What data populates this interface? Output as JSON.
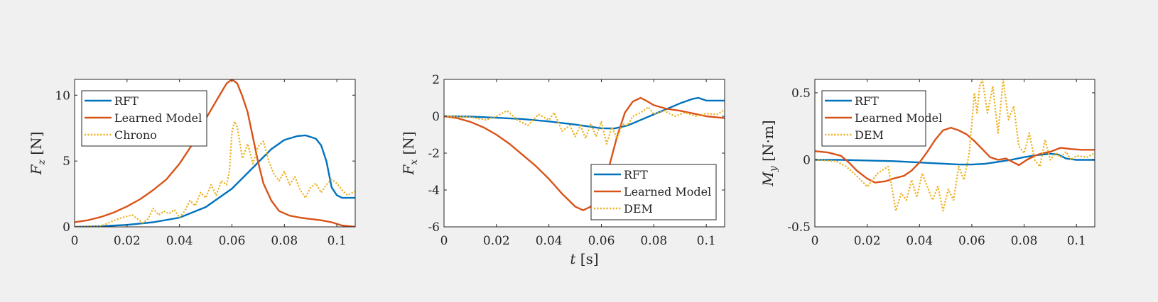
{
  "colors": {
    "rft": "#0072bd",
    "learned": "#d95319",
    "ref": "#edb120",
    "background": "#f0f0f0"
  },
  "chart_data": [
    {
      "type": "line",
      "xlabel": "",
      "ylabel": "F_z [N]",
      "xlim": [
        0,
        0.107
      ],
      "ylim": [
        0,
        11.2
      ],
      "xticks": [
        0,
        0.02,
        0.04,
        0.06,
        0.08,
        0.1
      ],
      "yticks": [
        0,
        5,
        10
      ],
      "xtick_labels": [
        "0",
        "0.02",
        "0.04",
        "0.06",
        "0.08",
        "0.1"
      ],
      "ytick_labels": [
        "0",
        "5",
        "10"
      ],
      "legend_position": "top-left",
      "series": [
        {
          "name": "RFT",
          "style": "solid",
          "x": [
            0,
            0.01,
            0.02,
            0.03,
            0.04,
            0.05,
            0.06,
            0.065,
            0.07,
            0.075,
            0.08,
            0.085,
            0.088,
            0.092,
            0.094,
            0.096,
            0.098,
            0.1,
            0.102,
            0.107
          ],
          "y": [
            0,
            0.05,
            0.15,
            0.35,
            0.7,
            1.5,
            2.9,
            3.9,
            4.9,
            5.9,
            6.6,
            6.9,
            6.95,
            6.7,
            6.2,
            5.0,
            3.0,
            2.4,
            2.2,
            2.2
          ]
        },
        {
          "name": "Learned Model",
          "style": "solid",
          "x": [
            0,
            0.005,
            0.01,
            0.015,
            0.02,
            0.025,
            0.03,
            0.035,
            0.04,
            0.045,
            0.05,
            0.055,
            0.058,
            0.06,
            0.062,
            0.064,
            0.066,
            0.068,
            0.07,
            0.072,
            0.075,
            0.078,
            0.082,
            0.086,
            0.09,
            0.094,
            0.098,
            0.102,
            0.107
          ],
          "y": [
            0.35,
            0.5,
            0.75,
            1.1,
            1.55,
            2.1,
            2.8,
            3.6,
            4.8,
            6.3,
            8.2,
            9.9,
            10.9,
            11.2,
            10.9,
            9.9,
            8.7,
            6.8,
            4.9,
            3.3,
            2.0,
            1.2,
            0.85,
            0.7,
            0.6,
            0.5,
            0.35,
            0.1,
            0
          ]
        },
        {
          "name": "Chrono",
          "style": "dotted",
          "x": [
            0,
            0.01,
            0.014,
            0.018,
            0.022,
            0.026,
            0.028,
            0.03,
            0.032,
            0.034,
            0.036,
            0.038,
            0.04,
            0.042,
            0.044,
            0.046,
            0.048,
            0.05,
            0.052,
            0.054,
            0.056,
            0.058,
            0.059,
            0.06,
            0.061,
            0.062,
            0.064,
            0.066,
            0.068,
            0.07,
            0.072,
            0.074,
            0.076,
            0.078,
            0.08,
            0.082,
            0.084,
            0.086,
            0.088,
            0.09,
            0.092,
            0.094,
            0.096,
            0.098,
            0.1,
            0.102,
            0.104,
            0.107
          ],
          "y": [
            0,
            0.05,
            0.4,
            0.7,
            0.9,
            0.3,
            0.6,
            1.4,
            0.9,
            1.2,
            1.0,
            1.3,
            0.7,
            1.2,
            2.0,
            1.6,
            2.6,
            2.2,
            3.2,
            2.4,
            3.5,
            3.2,
            4.2,
            7.2,
            8.0,
            7.6,
            5.2,
            6.3,
            4.8,
            6.1,
            6.5,
            5.0,
            4.0,
            3.5,
            4.2,
            3.2,
            3.8,
            2.8,
            2.2,
            3.0,
            3.3,
            2.6,
            3.2,
            3.6,
            3.3,
            2.8,
            2.4,
            2.7
          ]
        }
      ]
    },
    {
      "type": "line",
      "xlabel": "t [s]",
      "ylabel": "F_x [N]",
      "xlim": [
        0,
        0.107
      ],
      "ylim": [
        -6,
        2
      ],
      "xticks": [
        0,
        0.02,
        0.04,
        0.06,
        0.08,
        0.1
      ],
      "yticks": [
        -6,
        -4,
        -2,
        0,
        2
      ],
      "xtick_labels": [
        "0",
        "0.02",
        "0.04",
        "0.06",
        "0.08",
        "0.1"
      ],
      "ytick_labels": [
        "-6",
        "-4",
        "-2",
        "0",
        "2"
      ],
      "legend_position": "bottom-right",
      "series": [
        {
          "name": "RFT",
          "style": "solid",
          "x": [
            0,
            0.01,
            0.02,
            0.03,
            0.04,
            0.05,
            0.055,
            0.06,
            0.065,
            0.07,
            0.075,
            0.08,
            0.085,
            0.09,
            0.095,
            0.097,
            0.1,
            0.107
          ],
          "y": [
            0,
            -0.02,
            -0.08,
            -0.15,
            -0.28,
            -0.45,
            -0.55,
            -0.65,
            -0.66,
            -0.5,
            -0.2,
            0.1,
            0.4,
            0.7,
            0.95,
            1.0,
            0.85,
            0.85
          ]
        },
        {
          "name": "Learned Model",
          "style": "solid",
          "x": [
            0,
            0.005,
            0.01,
            0.015,
            0.02,
            0.025,
            0.03,
            0.035,
            0.04,
            0.045,
            0.05,
            0.053,
            0.056,
            0.06,
            0.063,
            0.066,
            0.069,
            0.072,
            0.075,
            0.077,
            0.08,
            0.085,
            0.09,
            0.095,
            0.1,
            0.107
          ],
          "y": [
            0,
            -0.1,
            -0.3,
            -0.6,
            -1.0,
            -1.5,
            -2.1,
            -2.7,
            -3.4,
            -4.2,
            -4.9,
            -5.1,
            -4.9,
            -4.0,
            -2.7,
            -1.1,
            0.2,
            0.8,
            1.0,
            0.85,
            0.6,
            0.4,
            0.3,
            0.15,
            0.0,
            -0.1
          ]
        },
        {
          "name": "DEM",
          "style": "dotted",
          "x": [
            0,
            0.01,
            0.016,
            0.02,
            0.024,
            0.028,
            0.032,
            0.036,
            0.04,
            0.042,
            0.045,
            0.048,
            0.05,
            0.052,
            0.054,
            0.056,
            0.058,
            0.06,
            0.062,
            0.064,
            0.066,
            0.068,
            0.07,
            0.072,
            0.075,
            0.078,
            0.08,
            0.084,
            0.088,
            0.092,
            0.096,
            0.1,
            0.104,
            0.107
          ],
          "y": [
            0,
            -0.05,
            -0.2,
            0.0,
            0.3,
            -0.2,
            -0.5,
            0.1,
            -0.2,
            0.2,
            -0.8,
            -0.5,
            -1.1,
            -0.5,
            -1.2,
            -0.4,
            -1.1,
            -0.3,
            -1.5,
            -0.6,
            -1.2,
            -0.4,
            -0.5,
            0.0,
            0.2,
            0.5,
            0.1,
            0.3,
            0.0,
            0.2,
            0.0,
            0.15,
            0.1,
            0.35
          ]
        }
      ]
    },
    {
      "type": "line",
      "xlabel": "",
      "ylabel": "M_y [N·m]",
      "xlim": [
        0,
        0.107
      ],
      "ylim": [
        -0.5,
        0.6
      ],
      "xticks": [
        0,
        0.02,
        0.04,
        0.06,
        0.08,
        0.1
      ],
      "yticks": [
        -0.5,
        0,
        0.5
      ],
      "xtick_labels": [
        "0",
        "0.02",
        "0.04",
        "0.06",
        "0.08",
        "0.1"
      ],
      "ytick_labels": [
        "-0.5",
        "0",
        "0.5"
      ],
      "legend_position": "top-left",
      "series": [
        {
          "name": "RFT",
          "style": "solid",
          "x": [
            0,
            0.01,
            0.02,
            0.03,
            0.04,
            0.05,
            0.055,
            0.06,
            0.065,
            0.07,
            0.075,
            0.08,
            0.085,
            0.09,
            0.093,
            0.096,
            0.1,
            0.107
          ],
          "y": [
            0,
            0,
            -0.005,
            -0.01,
            -0.02,
            -0.03,
            -0.035,
            -0.035,
            -0.03,
            -0.015,
            0.0,
            0.02,
            0.035,
            0.045,
            0.04,
            0.01,
            0.0,
            0.0
          ]
        },
        {
          "name": "Learned Model",
          "style": "solid",
          "x": [
            0,
            0.005,
            0.01,
            0.013,
            0.016,
            0.02,
            0.023,
            0.027,
            0.03,
            0.034,
            0.037,
            0.04,
            0.043,
            0.046,
            0.049,
            0.052,
            0.055,
            0.058,
            0.061,
            0.064,
            0.067,
            0.07,
            0.073,
            0.076,
            0.078,
            0.081,
            0.084,
            0.087,
            0.09,
            0.094,
            0.098,
            0.102,
            0.107
          ],
          "y": [
            0.065,
            0.055,
            0.03,
            -0.02,
            -0.08,
            -0.14,
            -0.17,
            -0.16,
            -0.14,
            -0.12,
            -0.08,
            -0.02,
            0.06,
            0.15,
            0.22,
            0.24,
            0.22,
            0.19,
            0.14,
            0.08,
            0.02,
            0.0,
            0.01,
            -0.02,
            -0.04,
            0.0,
            0.03,
            0.05,
            0.06,
            0.09,
            0.08,
            0.075,
            0.075
          ]
        },
        {
          "name": "DEM",
          "style": "dotted",
          "x": [
            0,
            0.008,
            0.012,
            0.016,
            0.02,
            0.024,
            0.028,
            0.031,
            0.033,
            0.035,
            0.037,
            0.039,
            0.041,
            0.043,
            0.045,
            0.047,
            0.049,
            0.051,
            0.053,
            0.055,
            0.057,
            0.059,
            0.061,
            0.062,
            0.063,
            0.064,
            0.066,
            0.068,
            0.07,
            0.072,
            0.074,
            0.076,
            0.078,
            0.08,
            0.082,
            0.084,
            0.086,
            0.088,
            0.09,
            0.092,
            0.094,
            0.096,
            0.098,
            0.1,
            0.104,
            0.107
          ],
          "y": [
            0,
            -0.01,
            -0.05,
            -0.12,
            -0.2,
            -0.1,
            -0.05,
            -0.38,
            -0.25,
            -0.3,
            -0.15,
            -0.28,
            -0.1,
            -0.2,
            -0.3,
            -0.2,
            -0.38,
            -0.22,
            -0.3,
            -0.05,
            -0.15,
            0.05,
            0.5,
            0.35,
            0.55,
            0.6,
            0.35,
            0.55,
            0.2,
            0.6,
            0.3,
            0.4,
            0.1,
            0.05,
            0.2,
            0.0,
            -0.05,
            0.15,
            0.0,
            0.05,
            0.02,
            0.06,
            0.0,
            0.03,
            0.02,
            0.05
          ]
        }
      ]
    }
  ]
}
